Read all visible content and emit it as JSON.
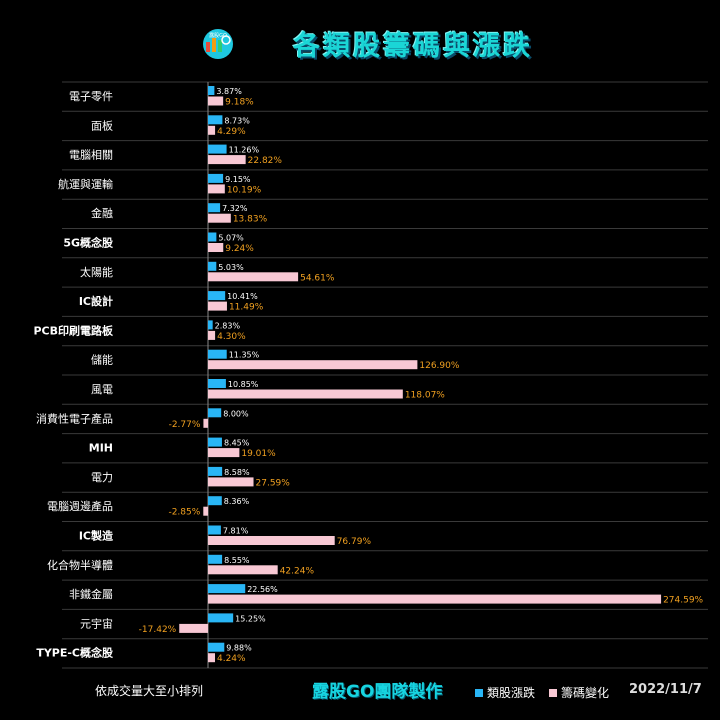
{
  "title": "各類股籌碼與漲跌",
  "logo": {
    "text": "露股GO"
  },
  "footer": {
    "note": "依成交量大至小排列",
    "credit": "露股GO團隊製作",
    "date": "2022/11/7"
  },
  "colors": {
    "series1": "#29b6f6",
    "series2": "#f8c8d4",
    "label1": "#ffffff",
    "label2": "#f0a020",
    "category": "#ffffff"
  },
  "chart_data": {
    "type": "bar",
    "orientation": "horizontal",
    "categories": [
      "電子零件",
      "面板",
      "電腦相關",
      "航運與運輸",
      "金融",
      "5G概念股",
      "太陽能",
      "IC設計",
      "PCB印刷電路板",
      "儲能",
      "風電",
      "消費性電子產品",
      "MIH",
      "電力",
      "電腦週邊產品",
      "IC製造",
      "化合物半導體",
      "非鐵金屬",
      "元宇宙",
      "TYPE-C概念股"
    ],
    "series": [
      {
        "name": "類股漲跌",
        "values": [
          3.87,
          8.73,
          11.26,
          9.15,
          7.32,
          5.07,
          5.03,
          10.41,
          2.83,
          11.35,
          10.85,
          8.0,
          8.45,
          8.58,
          8.36,
          7.81,
          8.55,
          22.56,
          15.25,
          9.88
        ],
        "labels": [
          "3.87%",
          "8.73%",
          "11.26%",
          "9.15%",
          "7.32%",
          "5.07%",
          "5.03%",
          "10.41%",
          "2.83%",
          "11.35%",
          "10.85%",
          "8.00%",
          "8.45%",
          "8.58%",
          "8.36%",
          "7.81%",
          "8.55%",
          "22.56%",
          "15.25%",
          "9.88%"
        ]
      },
      {
        "name": "籌碼變化",
        "values": [
          9.18,
          4.29,
          22.82,
          10.19,
          13.83,
          9.24,
          54.61,
          11.49,
          4.3,
          126.9,
          118.07,
          -2.77,
          19.01,
          27.59,
          -2.85,
          76.79,
          42.24,
          274.59,
          -17.42,
          4.24
        ],
        "labels": [
          "9.18%",
          "4.29%",
          "22.82%",
          "10.19%",
          "13.83%",
          "9.24%",
          "54.61%",
          "11.49%",
          "4.30%",
          "126.90%",
          "118.07%",
          "-2.77%",
          "19.01%",
          "27.59%",
          "-2.85%",
          "76.79%",
          "42.24%",
          "274.59%",
          "-17.42%",
          "4.24%"
        ]
      }
    ],
    "xlim": [
      -20,
      280
    ],
    "grid": "horizontal-lines",
    "legend_position": "bottom-right"
  }
}
